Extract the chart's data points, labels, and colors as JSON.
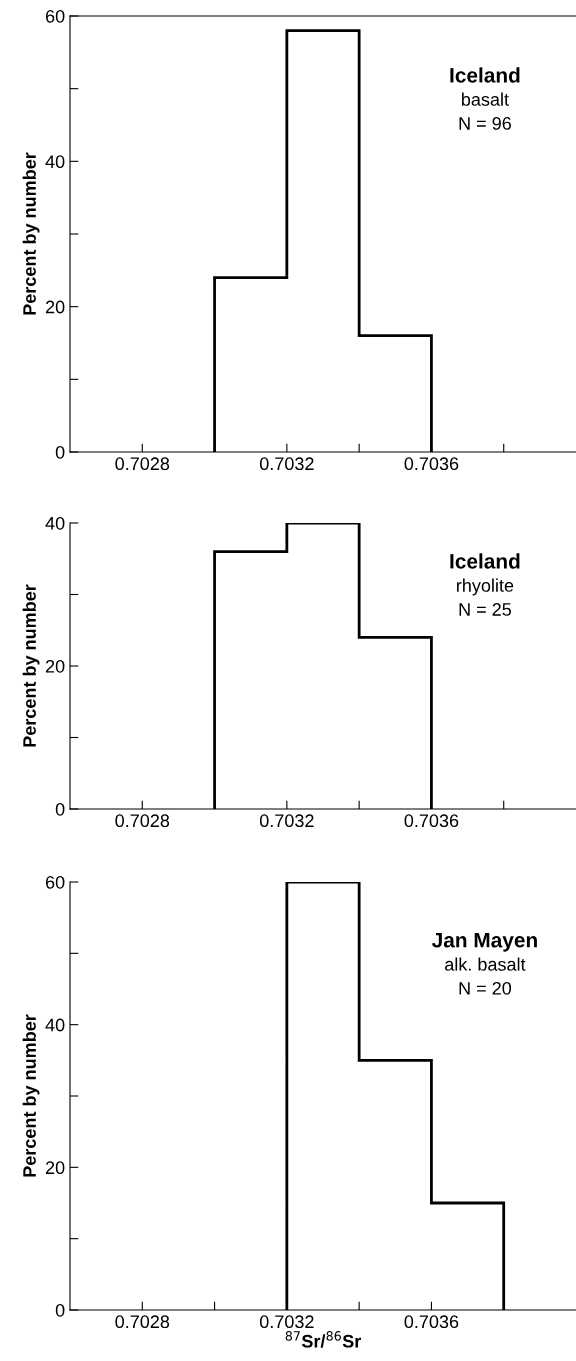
{
  "chart_data": [
    {
      "type": "histogram",
      "bins": [
        0.703,
        0.7032,
        0.7034,
        0.7036
      ],
      "values": [
        24,
        58,
        16
      ],
      "color": "#000000",
      "ylabel": "Percent by number",
      "xlim": [
        0.7026,
        0.704
      ],
      "xticks": [
        {
          "value": 0.7028,
          "label": "0.7028"
        },
        {
          "value": 0.703,
          "label": null
        },
        {
          "value": 0.7032,
          "label": "0.7032"
        },
        {
          "value": 0.7034,
          "label": null
        },
        {
          "value": 0.7036,
          "label": "0.7036"
        },
        {
          "value": 0.7038,
          "label": null
        }
      ],
      "ylim": [
        0,
        60
      ],
      "yticks": [
        0,
        {
          "value": 10,
          "label": null
        },
        20,
        {
          "value": 30,
          "label": null
        },
        40,
        {
          "value": 50,
          "label": null
        },
        60
      ],
      "grid": false,
      "legend": false,
      "annotations": [
        "Iceland",
        "basalt",
        "N = 96"
      ]
    },
    {
      "type": "histogram",
      "bins": [
        0.703,
        0.7032,
        0.7034,
        0.7036
      ],
      "values": [
        36,
        40,
        24
      ],
      "color": "#000000",
      "ylabel": "Percent by number",
      "xlim": [
        0.7026,
        0.704
      ],
      "xticks": [
        {
          "value": 0.7028,
          "label": "0.7028"
        },
        {
          "value": 0.703,
          "label": null
        },
        {
          "value": 0.7032,
          "label": "0.7032"
        },
        {
          "value": 0.7034,
          "label": null
        },
        {
          "value": 0.7036,
          "label": "0.7036"
        },
        {
          "value": 0.7038,
          "label": null
        }
      ],
      "ylim": [
        0,
        40
      ],
      "yticks": [
        0,
        {
          "value": 10,
          "label": null
        },
        20,
        {
          "value": 30,
          "label": null
        },
        40
      ],
      "grid": false,
      "legend": false,
      "annotations": [
        "Iceland",
        "rhyolite",
        "N = 25"
      ]
    },
    {
      "type": "histogram",
      "bins": [
        0.7032,
        0.7034,
        0.7036,
        0.7038
      ],
      "values": [
        60,
        35,
        15
      ],
      "color": "#000000",
      "ylabel": "Percent by number",
      "xlabel": "$^{87}$Sr/$^{86}$Sr",
      "xlim": [
        0.7026,
        0.704
      ],
      "xticks": [
        {
          "value": 0.7028,
          "label": "0.7028"
        },
        {
          "value": 0.703,
          "label": null
        },
        {
          "value": 0.7032,
          "label": "0.7032"
        },
        {
          "value": 0.7034,
          "label": null
        },
        {
          "value": 0.7036,
          "label": "0.7036"
        },
        {
          "value": 0.7038,
          "label": null
        }
      ],
      "ylim": [
        0,
        60
      ],
      "yticks": [
        0,
        {
          "value": 10,
          "label": null
        },
        20,
        {
          "value": 30,
          "label": null
        },
        40,
        {
          "value": 50,
          "label": null
        },
        60
      ],
      "grid": false,
      "legend": false,
      "annotations": [
        "Jan Mayen",
        "alk. basalt",
        "N = 20"
      ]
    }
  ]
}
